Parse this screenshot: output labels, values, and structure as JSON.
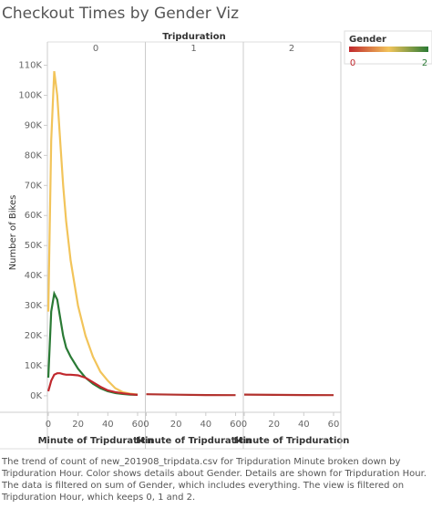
{
  "chart_data": {
    "type": "line",
    "title": "Checkout Times by Gender Viz",
    "column_header": "Tripduration",
    "y_label": "Number of Bikes",
    "x_label": "Minute of Tripduration",
    "ylim": [
      -5500,
      113500
    ],
    "yticks": [
      {
        "value": 0,
        "label": "0K"
      },
      {
        "value": 10000,
        "label": "10K"
      },
      {
        "value": 20000,
        "label": "20K"
      },
      {
        "value": 30000,
        "label": "30K"
      },
      {
        "value": 40000,
        "label": "40K"
      },
      {
        "value": 50000,
        "label": "50K"
      },
      {
        "value": 60000,
        "label": "60K"
      },
      {
        "value": 70000,
        "label": "70K"
      },
      {
        "value": 80000,
        "label": "80K"
      },
      {
        "value": 90000,
        "label": "90K"
      },
      {
        "value": 100000,
        "label": "100K"
      },
      {
        "value": 110000,
        "label": "110K"
      }
    ],
    "xlim": [
      -0.6,
      64.3
    ],
    "xticks": [
      0,
      20,
      40,
      60
    ],
    "legend": {
      "title": "Gender",
      "ticks": [
        0,
        2
      ],
      "colors": [
        "#c0282d",
        "#f2c45a",
        "#2a7a35"
      ],
      "position": "top-right"
    },
    "panels": [
      {
        "label": "0",
        "x": [
          0,
          2,
          4,
          6,
          8,
          10,
          12,
          15,
          20,
          25,
          30,
          35,
          40,
          45,
          50,
          55,
          60
        ],
        "series": [
          {
            "color": "#f2c45a",
            "values": [
              28000,
              85000,
              108000,
              100000,
              85000,
              70000,
              58000,
              45000,
              30000,
              20000,
              13000,
              8000,
              5000,
              2500,
              1200,
              700,
              400
            ]
          },
          {
            "color": "#2a7a35",
            "values": [
              6000,
              28000,
              34000,
              32000,
              26000,
              20000,
              16000,
              13000,
              9000,
              6000,
              4000,
              2500,
              1500,
              900,
              600,
              400,
              300
            ]
          },
          {
            "color": "#c0282d",
            "values": [
              1500,
              5000,
              7000,
              7500,
              7500,
              7200,
              7000,
              7000,
              6800,
              6000,
              4500,
              3000,
              1800,
              1200,
              800,
              500,
              300
            ]
          }
        ]
      },
      {
        "label": "1",
        "x": [
          0,
          20,
          40,
          60
        ],
        "series": [
          {
            "color": "#b2322e",
            "values": [
              500,
              350,
              250,
              200
            ]
          }
        ]
      },
      {
        "label": "2",
        "x": [
          0,
          20,
          40,
          60
        ],
        "series": [
          {
            "color": "#b2322e",
            "values": [
              400,
              300,
              250,
              200
            ]
          }
        ]
      }
    ],
    "caption": "The trend of count of new_201908_tripdata.csv for Tripduration Minute broken down by Tripduration Hour.  Color shows details about Gender.  Details are shown for Tripduration Hour. The data is filtered on sum of Gender, which includes everything. The view is filtered on Tripduration Hour, which keeps 0, 1 and 2."
  }
}
